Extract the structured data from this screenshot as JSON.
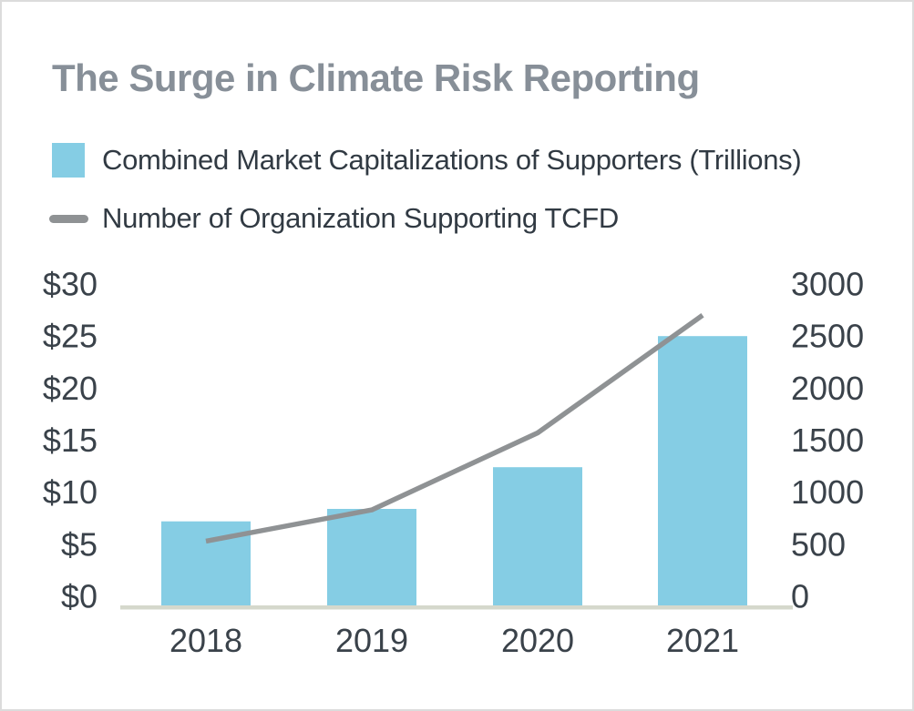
{
  "header": {
    "title": "The Surge in Climate Risk Reporting"
  },
  "legend": {
    "items": [
      {
        "label": "Combined Market Capitalizations of Supporters (Trillions)",
        "series": "bar",
        "color": "#85CDE4"
      },
      {
        "label": "Number of Organization Supporting TCFD",
        "series": "line",
        "color": "#8F9294"
      }
    ]
  },
  "chart_data": {
    "type": "combo",
    "title": "The Surge in Climate Risk Reporting",
    "categories": [
      "2018",
      "2019",
      "2020",
      "2021"
    ],
    "series": [
      {
        "name": "Combined Market Capitalizations of Supporters (Trillions)",
        "type": "bar",
        "axis": "left",
        "color": "#85CDE4",
        "values": [
          7.2,
          8.4,
          12.4,
          25
        ]
      },
      {
        "name": "Number of Organization Supporting TCFD",
        "type": "line",
        "axis": "right",
        "color": "#8F9294",
        "values": [
          530,
          830,
          1570,
          2700
        ]
      }
    ],
    "left_axis": {
      "tick_labels": [
        "$0",
        "$5",
        "$10",
        "$15",
        "$20",
        "$25",
        "$30"
      ],
      "min": 0,
      "max": 30,
      "step": 5
    },
    "right_axis": {
      "tick_labels": [
        "0",
        "500",
        "1000",
        "1500",
        "2000",
        "2500",
        "3000"
      ],
      "min": 0,
      "max": 3000,
      "step": 500
    },
    "grid": false,
    "legend_position": "top-left"
  },
  "colors": {
    "background": "#FFFFFF",
    "border": "#DCDCDC",
    "title": "#878F98",
    "legend_text": "#313A43",
    "tick_text": "#3A424A",
    "axis_line": "#D5D8CC",
    "bar": "#85CDE4",
    "line": "#8F9294"
  }
}
